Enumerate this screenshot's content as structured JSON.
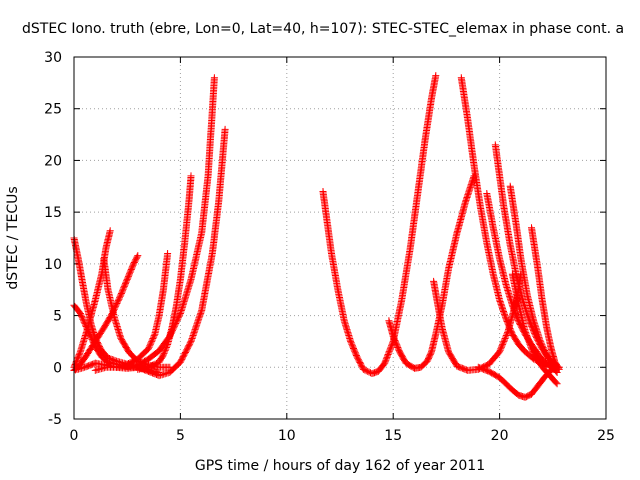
{
  "chart_data": {
    "type": "scatter",
    "title": "dSTEC Iono. truth (ebre, Lon=0, Lat=40, h=107): STEC-STEC_elemax in phase cont. a",
    "xlabel": "GPS time / hours of day 162 of year 2011",
    "ylabel": "dSTEC  / TECUs",
    "xlim": [
      0,
      25
    ],
    "ylim": [
      -5,
      30
    ],
    "xticks": [
      0,
      5,
      10,
      15,
      20,
      25
    ],
    "yticks": [
      -5,
      0,
      5,
      10,
      15,
      20,
      25,
      30
    ],
    "grid": true,
    "marker": "plus",
    "marker_color": "#ff0000",
    "series": [
      {
        "x": [
          0.0,
          0.5,
          1.0,
          1.5,
          2.0,
          2.5,
          3.0,
          3.5,
          4.0,
          4.5,
          5.0,
          5.5,
          6.0,
          6.3,
          6.6
        ],
        "y": [
          -0.3,
          0.0,
          0.4,
          0.2,
          0.0,
          0.1,
          0.2,
          0.8,
          1.6,
          3.0,
          5.2,
          8.5,
          13.0,
          18.5,
          28.0
        ]
      },
      {
        "x": [
          1.0,
          1.5,
          2.0,
          2.5,
          3.0,
          3.5,
          4.0,
          4.5,
          5.0,
          5.5,
          6.0,
          6.5,
          6.8,
          7.1
        ],
        "y": [
          -0.3,
          0.0,
          0.0,
          -0.1,
          0.0,
          -0.4,
          -0.8,
          -0.5,
          0.5,
          2.5,
          5.5,
          11.0,
          16.0,
          23.0
        ]
      },
      {
        "x": [
          3.0,
          3.5,
          4.0,
          4.2,
          4.4,
          4.6,
          4.8,
          5.0,
          5.2,
          5.4,
          5.5
        ],
        "y": [
          -0.2,
          0.0,
          0.5,
          1.2,
          2.2,
          3.8,
          5.8,
          8.5,
          12.0,
          16.0,
          18.5
        ]
      },
      {
        "x": [
          2.0,
          2.5,
          3.0,
          3.5,
          3.8,
          4.0,
          4.2,
          4.4
        ],
        "y": [
          0.0,
          0.3,
          0.8,
          1.8,
          3.2,
          5.0,
          7.5,
          11.0
        ]
      },
      {
        "x": [
          0.0,
          0.2,
          0.4,
          0.6,
          0.8,
          1.0,
          1.3,
          1.6,
          2.0,
          2.5,
          3.0
        ],
        "y": [
          12.5,
          10.5,
          8.2,
          6.0,
          4.2,
          2.8,
          1.6,
          0.9,
          0.6,
          0.3,
          0.0
        ]
      },
      {
        "x": [
          0.0,
          0.3,
          0.6,
          1.0,
          1.3,
          1.6,
          2.0,
          2.4,
          2.8,
          3.1,
          3.4,
          3.7,
          4.0
        ],
        "y": [
          6.0,
          5.2,
          3.8,
          2.0,
          1.0,
          0.5,
          0.3,
          0.1,
          0.0,
          0.0,
          -0.2,
          -0.4,
          -0.5
        ]
      },
      {
        "x": [
          0.0,
          0.3,
          0.6,
          1.0,
          1.4,
          1.8,
          2.2,
          2.5,
          2.8,
          3.0
        ],
        "y": [
          -0.3,
          0.3,
          1.2,
          2.5,
          3.8,
          5.2,
          7.0,
          8.5,
          10.0,
          10.8
        ]
      },
      {
        "x": [
          0.0,
          0.3,
          0.6,
          1.0,
          1.3,
          1.5,
          1.7
        ],
        "y": [
          0.0,
          1.5,
          3.5,
          6.5,
          9.0,
          11.5,
          13.2
        ]
      },
      {
        "x": [
          1.4,
          1.6,
          1.9,
          2.2,
          2.6,
          3.0,
          3.5,
          4.0,
          4.5
        ],
        "y": [
          10.5,
          7.5,
          4.8,
          2.8,
          1.4,
          0.6,
          0.2,
          0.0,
          0.0
        ]
      },
      {
        "x": [
          11.7,
          11.9,
          12.1,
          12.4,
          12.7,
          13.0,
          13.3,
          13.6,
          14.0,
          14.3,
          14.6,
          15.0,
          15.4,
          15.8,
          16.2,
          16.5,
          16.8,
          17.0
        ],
        "y": [
          17.0,
          14.0,
          11.0,
          7.5,
          4.5,
          2.5,
          1.0,
          -0.2,
          -0.6,
          -0.4,
          0.4,
          2.5,
          6.5,
          11.5,
          17.5,
          22.0,
          26.0,
          28.2
        ]
      },
      {
        "x": [
          14.8,
          15.0,
          15.3,
          15.6,
          16.0,
          16.3,
          16.6,
          16.8,
          17.0,
          17.3,
          17.6,
          18.0,
          18.4,
          18.8
        ],
        "y": [
          4.5,
          3.0,
          1.5,
          0.4,
          -0.1,
          0.0,
          0.6,
          1.5,
          3.2,
          6.0,
          9.5,
          13.0,
          16.0,
          18.5
        ]
      },
      {
        "x": [
          16.9,
          17.1,
          17.3,
          17.6,
          18.0,
          18.5,
          19.0,
          19.5,
          20.0,
          20.4,
          20.8,
          21.0
        ],
        "y": [
          8.3,
          6.0,
          3.8,
          1.5,
          0.1,
          -0.3,
          -0.2,
          0.3,
          1.5,
          3.5,
          6.5,
          9.0
        ]
      },
      {
        "x": [
          18.2,
          18.5,
          18.8,
          19.1,
          19.4,
          19.7,
          20.0,
          20.3,
          20.6,
          20.9,
          21.2,
          21.6,
          22.0,
          22.4,
          22.8
        ],
        "y": [
          28.0,
          24.0,
          19.5,
          15.5,
          12.0,
          9.0,
          6.5,
          4.7,
          3.2,
          2.2,
          1.5,
          0.8,
          0.4,
          0.2,
          0.0
        ]
      },
      {
        "x": [
          19.8,
          20.0,
          20.2,
          20.5,
          20.8,
          21.1,
          21.4,
          21.7,
          22.0,
          22.3,
          22.6
        ],
        "y": [
          21.5,
          18.5,
          15.5,
          11.8,
          8.8,
          6.4,
          4.5,
          3.0,
          1.8,
          0.9,
          0.2
        ]
      },
      {
        "x": [
          19.4,
          19.7,
          20.0,
          20.3,
          20.6,
          20.9,
          21.2,
          21.5,
          21.8,
          22.1,
          22.5
        ],
        "y": [
          16.8,
          13.5,
          10.5,
          8.0,
          6.0,
          4.4,
          3.2,
          2.2,
          1.3,
          0.5,
          -0.1
        ]
      },
      {
        "x": [
          20.5,
          20.8,
          21.0,
          21.3,
          21.6,
          21.9,
          22.2,
          22.5,
          22.7
        ],
        "y": [
          17.5,
          13.5,
          10.5,
          7.0,
          4.5,
          2.6,
          1.2,
          0.0,
          -0.5
        ]
      },
      {
        "x": [
          21.5,
          21.8,
          22.0,
          22.2,
          22.4,
          22.6,
          22.8
        ],
        "y": [
          13.5,
          9.5,
          6.5,
          4.0,
          2.0,
          0.5,
          -0.2
        ]
      },
      {
        "x": [
          19.0,
          19.5,
          20.0,
          20.3,
          20.6,
          20.9,
          21.2,
          21.5,
          21.8,
          22.1,
          22.4,
          22.7
        ],
        "y": [
          0.0,
          -0.4,
          -1.0,
          -1.6,
          -2.2,
          -2.7,
          -2.9,
          -2.6,
          -1.8,
          -1.0,
          -0.3,
          0.0
        ]
      },
      {
        "x": [
          20.6,
          20.9,
          21.2,
          21.5,
          21.8,
          22.1,
          22.4,
          22.7
        ],
        "y": [
          9.0,
          6.0,
          3.5,
          1.8,
          0.6,
          -0.2,
          -0.9,
          -1.6
        ]
      }
    ]
  }
}
